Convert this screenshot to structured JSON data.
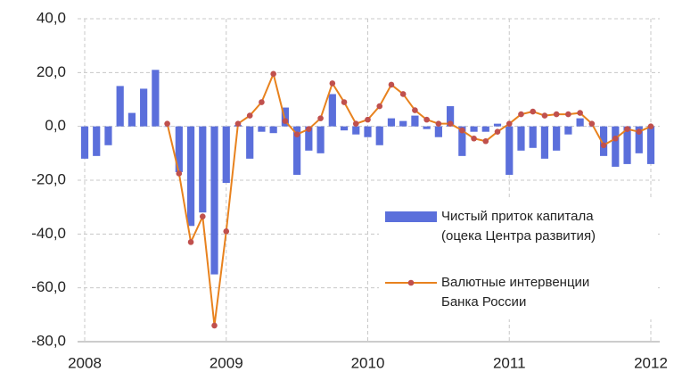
{
  "chart_data": {
    "type": "bar_line",
    "categories": [
      "2008",
      null,
      null,
      null,
      null,
      null,
      null,
      null,
      null,
      null,
      null,
      null,
      "2009",
      null,
      null,
      null,
      null,
      null,
      null,
      null,
      null,
      null,
      null,
      null,
      "2010",
      null,
      null,
      null,
      null,
      null,
      null,
      null,
      null,
      null,
      null,
      null,
      "2011",
      null,
      null,
      null,
      null,
      null,
      null,
      null,
      null,
      null,
      null,
      null,
      "2012"
    ],
    "series": [
      {
        "name": "Чистый приток капитала\n(оцека Центра развития)",
        "type": "bar",
        "color": "#5b6fdb",
        "values": [
          -12,
          -11,
          -7,
          15,
          5,
          14,
          21,
          0,
          -17,
          -37,
          -32,
          -55,
          -21,
          0.5,
          -12,
          -2,
          -2.5,
          7,
          -18,
          -9,
          -10,
          12,
          -1.5,
          -3,
          -4,
          -7,
          3,
          2,
          4,
          -1,
          -4,
          7.5,
          -11,
          -2,
          -2,
          1,
          -18,
          -9,
          -8,
          -12,
          -9,
          -3,
          3,
          0,
          -11,
          -15,
          -14,
          -10,
          -14
        ]
      },
      {
        "name": "Валютные интервенции\nБанка России",
        "type": "line",
        "color": "#e8821e",
        "marker_color": "#c0504d",
        "values": [
          null,
          null,
          null,
          null,
          null,
          null,
          null,
          1,
          -17.5,
          -43,
          -33.5,
          -74,
          -39,
          1,
          4,
          9,
          19.5,
          2,
          -3,
          -1,
          3,
          16,
          9,
          1,
          2.5,
          7.5,
          15.5,
          12,
          6,
          2.5,
          1,
          1,
          -1.5,
          -4.5,
          -5.5,
          -2,
          1,
          4.5,
          5.5,
          4,
          4.5,
          4.5,
          5,
          1,
          -7,
          -4.5,
          -1,
          -2,
          0
        ]
      }
    ],
    "ylim": [
      -80,
      40
    ],
    "yticks": [
      {
        "value": -80,
        "label": "-80,0"
      },
      {
        "value": -60,
        "label": "-60,0"
      },
      {
        "value": -40,
        "label": "-40,0"
      },
      {
        "value": -20,
        "label": "-20,0"
      },
      {
        "value": 0,
        "label": "0,0"
      },
      {
        "value": 20,
        "label": "20,0"
      },
      {
        "value": 40,
        "label": "40,0"
      }
    ],
    "grid": true,
    "legend": "right"
  }
}
